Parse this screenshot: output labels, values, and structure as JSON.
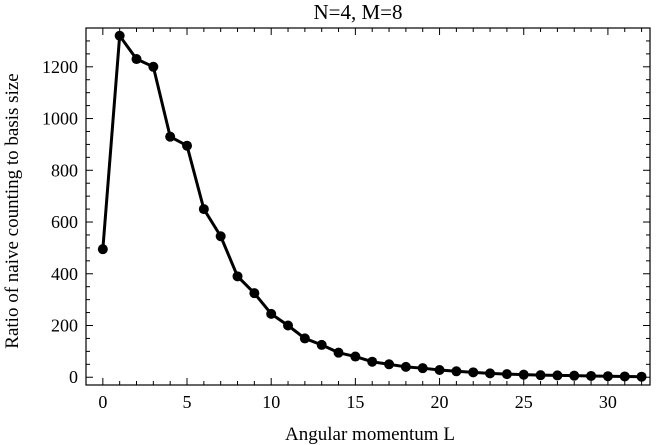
{
  "chart_data": {
    "type": "line",
    "title": "N=4, M=8",
    "xlabel": "Angular momentum L",
    "ylabel": "Ratio of naive counting to basis size",
    "xlim": [
      -1,
      32.5
    ],
    "ylim": [
      -30,
      1350
    ],
    "x_ticks": [
      0,
      5,
      10,
      15,
      20,
      25,
      30
    ],
    "y_ticks": [
      0,
      200,
      400,
      600,
      800,
      1000,
      1200
    ],
    "grid": false,
    "legend": "none",
    "series": [
      {
        "x": [
          0,
          1,
          2,
          3,
          4,
          5,
          6,
          7,
          8,
          9,
          10,
          11,
          12,
          13,
          14,
          15,
          16,
          17,
          18,
          19,
          20,
          21,
          22,
          23,
          24,
          25,
          26,
          27,
          28,
          29,
          30,
          31,
          32
        ],
        "values": [
          495,
          1320,
          1230,
          1200,
          930,
          895,
          650,
          545,
          390,
          325,
          245,
          200,
          150,
          125,
          95,
          80,
          60,
          50,
          40,
          35,
          28,
          23,
          19,
          15,
          12,
          10,
          8,
          7,
          6,
          5,
          4,
          3,
          2
        ],
        "color": "#000000"
      }
    ]
  }
}
